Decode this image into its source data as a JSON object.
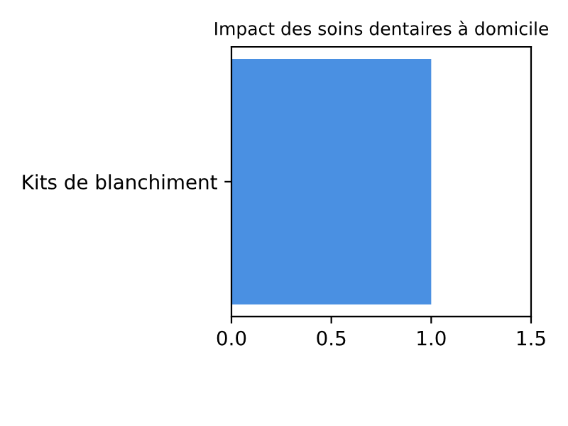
{
  "chart_data": {
    "type": "bar",
    "orientation": "horizontal",
    "title": "Impact des soins dentaires à domicile",
    "categories": [
      "Kits de blanchiment"
    ],
    "values": [
      1.0
    ],
    "color": "#4a90e2",
    "xlim": [
      0,
      1.5
    ],
    "xticks": [
      {
        "value": 0,
        "label": "0.0"
      },
      {
        "value": 0.5,
        "label": "0.5"
      },
      {
        "value": 1.0,
        "label": "1.0"
      },
      {
        "value": 1.5,
        "label": "1.5"
      }
    ],
    "grid": false,
    "legend": false
  }
}
